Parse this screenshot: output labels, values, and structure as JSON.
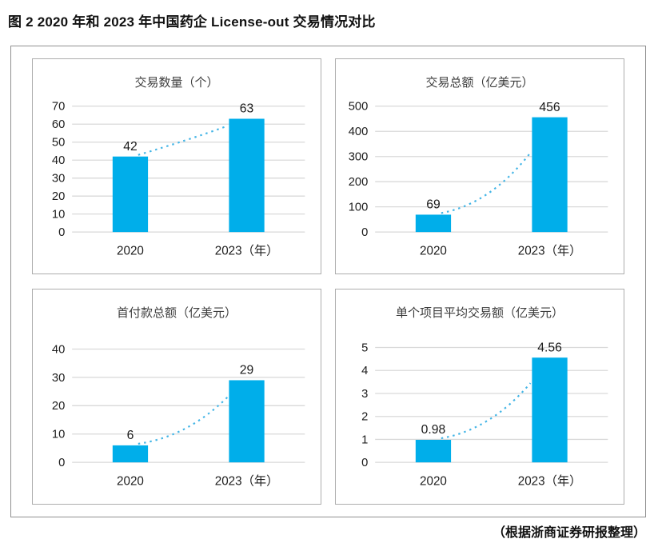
{
  "figure": {
    "title": "图 2  2020 年和 2023 年中国药企 License-out 交易情况对比",
    "source_note": "（根据浙商证券研报整理）"
  },
  "colors": {
    "bar": "#00AEEA",
    "trend": "#44B5E6",
    "grid": "#d9d9d9",
    "axis_text": "#1d1d1d",
    "data_label_text": "#1a1a1a",
    "panel_title_text": "#3d3d3d",
    "panel_border": "#adadad",
    "outer_border": "#909090"
  },
  "chart_data": [
    {
      "type": "bar",
      "title": "交易数量（个）",
      "categories": [
        "2020",
        "2023（年）"
      ],
      "values": [
        42,
        63
      ],
      "data_labels": [
        "42",
        "63"
      ],
      "ylim": [
        0,
        70
      ],
      "ytick_step": 10,
      "grid": true,
      "legend": "none",
      "layout": {
        "plot_top": 14,
        "trend_end": 59,
        "curve": 0.5
      }
    },
    {
      "type": "bar",
      "title": "交易总额（亿美元）",
      "categories": [
        "2020",
        "2023（年）"
      ],
      "values": [
        69,
        456
      ],
      "data_labels": [
        "69",
        "456"
      ],
      "ylim": [
        0,
        500
      ],
      "ytick_step": 100,
      "grid": true,
      "legend": "none",
      "layout": {
        "plot_top": 14,
        "trend_end": 315,
        "curve": 0.15
      }
    },
    {
      "type": "bar",
      "title": "首付款总额（亿美元）",
      "categories": [
        "2020",
        "2023（年）"
      ],
      "values": [
        6,
        29
      ],
      "data_labels": [
        "6",
        "29"
      ],
      "ylim": [
        0,
        40
      ],
      "ytick_step": 10,
      "grid": true,
      "legend": "none",
      "layout": {
        "plot_top": 30,
        "trend_end": 23,
        "curve": 0.15
      }
    },
    {
      "type": "bar",
      "title": "单个项目平均交易额（亿美元）",
      "categories": [
        "2020",
        "2023（年）"
      ],
      "values": [
        0.98,
        4.56
      ],
      "data_labels": [
        "0.98",
        "4.56"
      ],
      "ylim": [
        0,
        5
      ],
      "ytick_step": 1,
      "grid": true,
      "legend": "none",
      "layout": {
        "plot_top": 28,
        "trend_end": 3.45,
        "curve": 0.15
      }
    }
  ]
}
